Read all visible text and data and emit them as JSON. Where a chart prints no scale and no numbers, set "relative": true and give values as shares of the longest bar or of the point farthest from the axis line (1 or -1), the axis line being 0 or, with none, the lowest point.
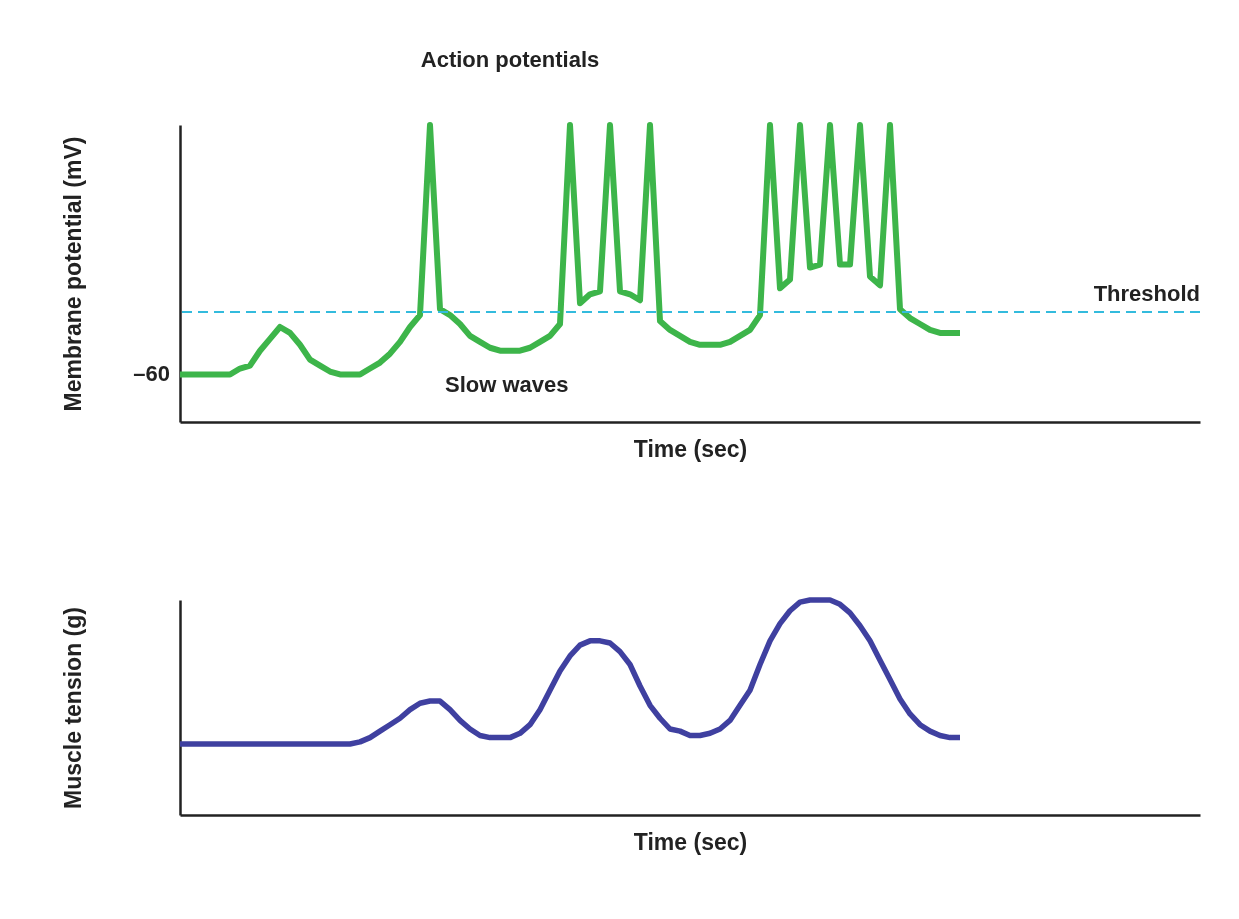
{
  "chart_data": [
    {
      "type": "line",
      "relative": true,
      "xlabel": "Time (sec)",
      "ylabel": "Membrane potential (mV)",
      "grid": false,
      "line_style": "solid",
      "categories": [
        null,
        null,
        null,
        null,
        null,
        null,
        null,
        null,
        null,
        null,
        null,
        null,
        null,
        null,
        null,
        null,
        null,
        null,
        null,
        null,
        null,
        null,
        null,
        null,
        null,
        null,
        null,
        null,
        null,
        null,
        null,
        null,
        null,
        null,
        null,
        null,
        null,
        null,
        null,
        null,
        null,
        null,
        null,
        null,
        null,
        null,
        null,
        null,
        null,
        null,
        null,
        null,
        null,
        null,
        null,
        null,
        null,
        null,
        null,
        null,
        null,
        null,
        null,
        null,
        null,
        null,
        null,
        null,
        null,
        null,
        null,
        null,
        null,
        null,
        null,
        null,
        null,
        null,
        null,
        null,
        null,
        null,
        null,
        null,
        null,
        null,
        null,
        null,
        null,
        null,
        null,
        null,
        null,
        null,
        null,
        null,
        null,
        null,
        null,
        null,
        null,
        null,
        null
      ],
      "series": [
        {
          "color": "#3db54a",
          "values": [
            0.16,
            0.16,
            0.16,
            0.16,
            0.16,
            0.16,
            0.18,
            0.19,
            0.24,
            0.28,
            0.32,
            0.3,
            0.26,
            0.21,
            0.19,
            0.17,
            0.16,
            0.16,
            0.16,
            0.18,
            0.2,
            0.23,
            0.27,
            0.32,
            0.36,
            1,
            0.38,
            0.36,
            0.33,
            0.29,
            0.27,
            0.25,
            0.24,
            0.24,
            0.24,
            0.25,
            0.27,
            0.29,
            0.33,
            1,
            0.4,
            0.43,
            0.44,
            1,
            0.44,
            0.43,
            0.41,
            1,
            0.34,
            0.31,
            0.29,
            0.27,
            0.26,
            0.26,
            0.26,
            0.27,
            0.29,
            0.31,
            0.36,
            1,
            0.45,
            0.48,
            1,
            0.52,
            0.53,
            1,
            0.53,
            0.53,
            1,
            0.49,
            0.46,
            1,
            0.38,
            0.35,
            0.33,
            0.31,
            0.3,
            0.3,
            0.3,
            null,
            null,
            null,
            null,
            null,
            null,
            null,
            null,
            null,
            null,
            null,
            null,
            null,
            null,
            null,
            null,
            null,
            null,
            null,
            null,
            null,
            null,
            null,
            null
          ]
        }
      ],
      "ref_lines": [
        {
          "axis": "y",
          "value": 0.37,
          "label": "Threshold",
          "color": "#33bbdd",
          "line_style": "dashed"
        }
      ],
      "annotations": [
        "Action potentials",
        "Slow waves",
        "–60"
      ]
    },
    {
      "type": "line",
      "relative": true,
      "xlabel": "Time (sec)",
      "ylabel": "Muscle tension (g)",
      "grid": false,
      "line_style": "solid",
      "categories": [
        null,
        null,
        null,
        null,
        null,
        null,
        null,
        null,
        null,
        null,
        null,
        null,
        null,
        null,
        null,
        null,
        null,
        null,
        null,
        null,
        null,
        null,
        null,
        null,
        null,
        null,
        null,
        null,
        null,
        null,
        null,
        null,
        null,
        null,
        null,
        null,
        null,
        null,
        null,
        null,
        null,
        null,
        null,
        null,
        null,
        null,
        null,
        null,
        null,
        null,
        null,
        null,
        null,
        null,
        null,
        null,
        null,
        null,
        null,
        null,
        null,
        null,
        null,
        null,
        null,
        null,
        null,
        null,
        null,
        null,
        null,
        null,
        null,
        null,
        null,
        null,
        null,
        null,
        null,
        null,
        null,
        null,
        null,
        null,
        null,
        null,
        null,
        null,
        null,
        null,
        null,
        null,
        null,
        null,
        null,
        null,
        null,
        null,
        null,
        null,
        null,
        null,
        null
      ],
      "series": [
        {
          "color": "#3f40a0",
          "values": [
            0.33,
            0.33,
            0.33,
            0.33,
            0.33,
            0.33,
            0.33,
            0.33,
            0.33,
            0.33,
            0.33,
            0.33,
            0.33,
            0.33,
            0.33,
            0.33,
            0.33,
            0.33,
            0.34,
            0.36,
            0.39,
            0.42,
            0.45,
            0.49,
            0.52,
            0.53,
            0.53,
            0.49,
            0.44,
            0.4,
            0.37,
            0.36,
            0.36,
            0.36,
            0.38,
            0.42,
            0.49,
            0.58,
            0.67,
            0.74,
            0.79,
            0.81,
            0.81,
            0.8,
            0.76,
            0.7,
            0.6,
            0.51,
            0.45,
            0.4,
            0.39,
            0.37,
            0.37,
            0.38,
            0.4,
            0.44,
            0.51,
            0.58,
            0.7,
            0.81,
            0.89,
            0.95,
            0.99,
            1,
            1,
            1,
            0.98,
            0.94,
            0.88,
            0.81,
            0.72,
            0.63,
            0.54,
            0.47,
            0.42,
            0.39,
            0.37,
            0.36,
            0.36,
            null,
            null,
            null,
            null,
            null,
            null,
            null,
            null,
            null,
            null,
            null,
            null,
            null,
            null,
            null,
            null,
            null,
            null,
            null,
            null,
            null,
            null,
            null,
            null
          ]
        }
      ]
    }
  ]
}
